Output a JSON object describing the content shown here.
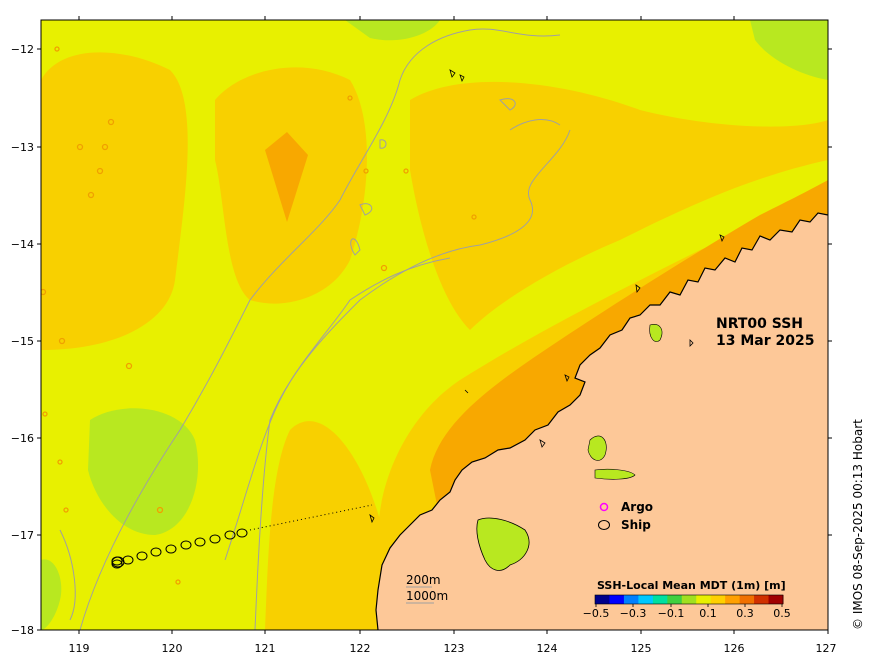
{
  "map": {
    "title_line1": "NRT00 SSH",
    "title_line2": "13 Mar 2025",
    "credit": "© IMOS 08-Sep-2025 00:13 Hobart",
    "x_ticks": [
      "119",
      "120",
      "121",
      "122",
      "123",
      "124",
      "125",
      "126",
      "127"
    ],
    "y_ticks": [
      "−12",
      "−13",
      "−14",
      "−15",
      "−16",
      "−17",
      "−18"
    ],
    "legend": {
      "argo_label": "Argo",
      "ship_label": "Ship",
      "argo_color": "#ff00ff",
      "ship_color": "#000000"
    },
    "depth_labels": {
      "contour_200": "200m",
      "contour_1000": "1000m"
    },
    "colorbar": {
      "title": "SSH-Local Mean MDT (1m) [m]",
      "ticks": [
        "−0.5",
        "−0.3",
        "−0.1",
        "0.1",
        "0.3",
        "0.5"
      ],
      "colors": [
        "#00008b",
        "#0000ff",
        "#0080ff",
        "#00c8ff",
        "#00e0a0",
        "#40d040",
        "#a0e020",
        "#e8f000",
        "#ffd000",
        "#ffa000",
        "#f07000",
        "#d03000",
        "#a00000"
      ]
    },
    "colors": {
      "land": "#fdc898",
      "yellow": "#e8f000",
      "light_orange": "#f8d000",
      "orange": "#f8a800",
      "green_yellow": "#b8e820"
    }
  }
}
